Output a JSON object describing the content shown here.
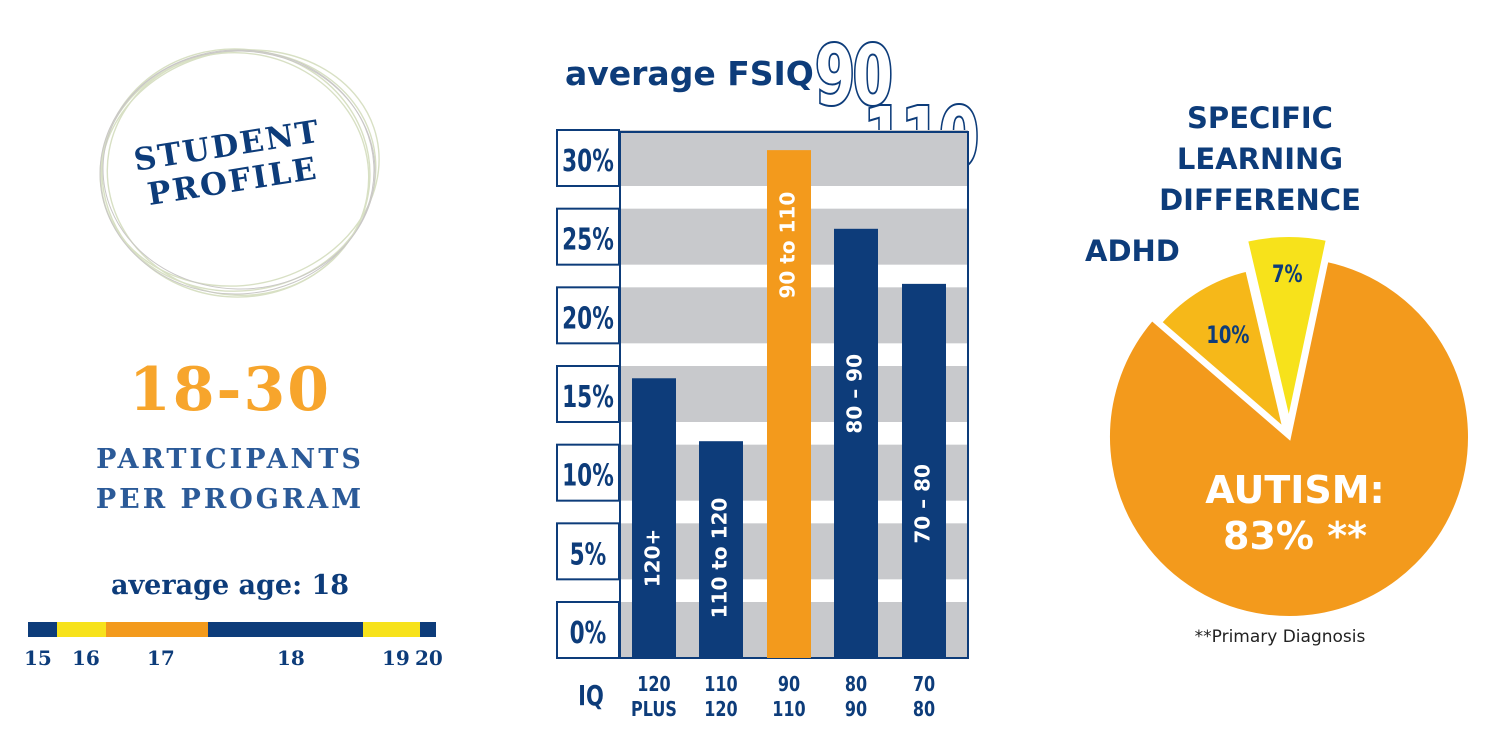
{
  "colors": {
    "navy": "#0d3c7a",
    "orange": "#f39a1c",
    "yellow": "#f7e21b",
    "gold": "#f6b819",
    "band_gray": "#c8c9cc"
  },
  "profile": {
    "title_line1": "STUDENT",
    "title_line2": "PROFILE",
    "range": "18-30",
    "participants_line1": "PARTICIPANTS",
    "participants_line2": "PER PROGRAM",
    "avg_age_label": "average age: 18",
    "age_bar": {
      "segments": [
        {
          "age": "15",
          "weight": 7,
          "color": "#0d3c7a"
        },
        {
          "age": "16",
          "weight": 12,
          "color": "#f7e21b"
        },
        {
          "age": "17",
          "weight": 25,
          "color": "#f39a1c"
        },
        {
          "age": "18",
          "weight": 38,
          "color": "#0d3c7a"
        },
        {
          "age": "19",
          "weight": 14,
          "color": "#f7e21b"
        },
        {
          "age": "20",
          "weight": 4,
          "color": "#0d3c7a"
        }
      ],
      "tick_labels": [
        "15",
        "16",
        "17",
        "18",
        "19",
        "20"
      ]
    }
  },
  "chart_data": [
    {
      "type": "bar",
      "title": "average FSIQ",
      "title_highlight_1": "90",
      "title_highlight_2": "-110",
      "xlabel": "IQ",
      "ylabel": "",
      "ylim": [
        0,
        30
      ],
      "y_ticks": [
        "0%",
        "5%",
        "10%",
        "15%",
        "20%",
        "25%",
        "30%"
      ],
      "y_tick_values": [
        0,
        5,
        10,
        15,
        20,
        25,
        30
      ],
      "categories": [
        {
          "bar_label": "120+",
          "axis_top": "120",
          "axis_bottom": "PLUS"
        },
        {
          "bar_label": "110  to 120",
          "axis_top": "110",
          "axis_bottom": "120"
        },
        {
          "bar_label": "90 to 110",
          "axis_top": "90",
          "axis_bottom": "110"
        },
        {
          "bar_label": "80 – 90",
          "axis_top": "80",
          "axis_bottom": "90"
        },
        {
          "bar_label": "70 – 80",
          "axis_top": "70",
          "axis_bottom": "80"
        }
      ],
      "values": [
        16,
        12,
        30.5,
        25.5,
        22
      ],
      "bar_colors": [
        "#0d3c7a",
        "#0d3c7a",
        "#f39a1c",
        "#0d3c7a",
        "#0d3c7a"
      ]
    },
    {
      "type": "pie",
      "slices": [
        {
          "label": "AUTISM:",
          "value_label": "83% **",
          "value": 83,
          "color": "#f39a1c"
        },
        {
          "label": "ADHD",
          "value_label": "10%",
          "value": 10,
          "color": "#f6b819"
        },
        {
          "label": "SPECIFIC LEARNING DIFFERENCE",
          "value_label": "7%",
          "value": 7,
          "color": "#f7e21b"
        }
      ],
      "footnote": "**Primary Diagnosis"
    }
  ]
}
